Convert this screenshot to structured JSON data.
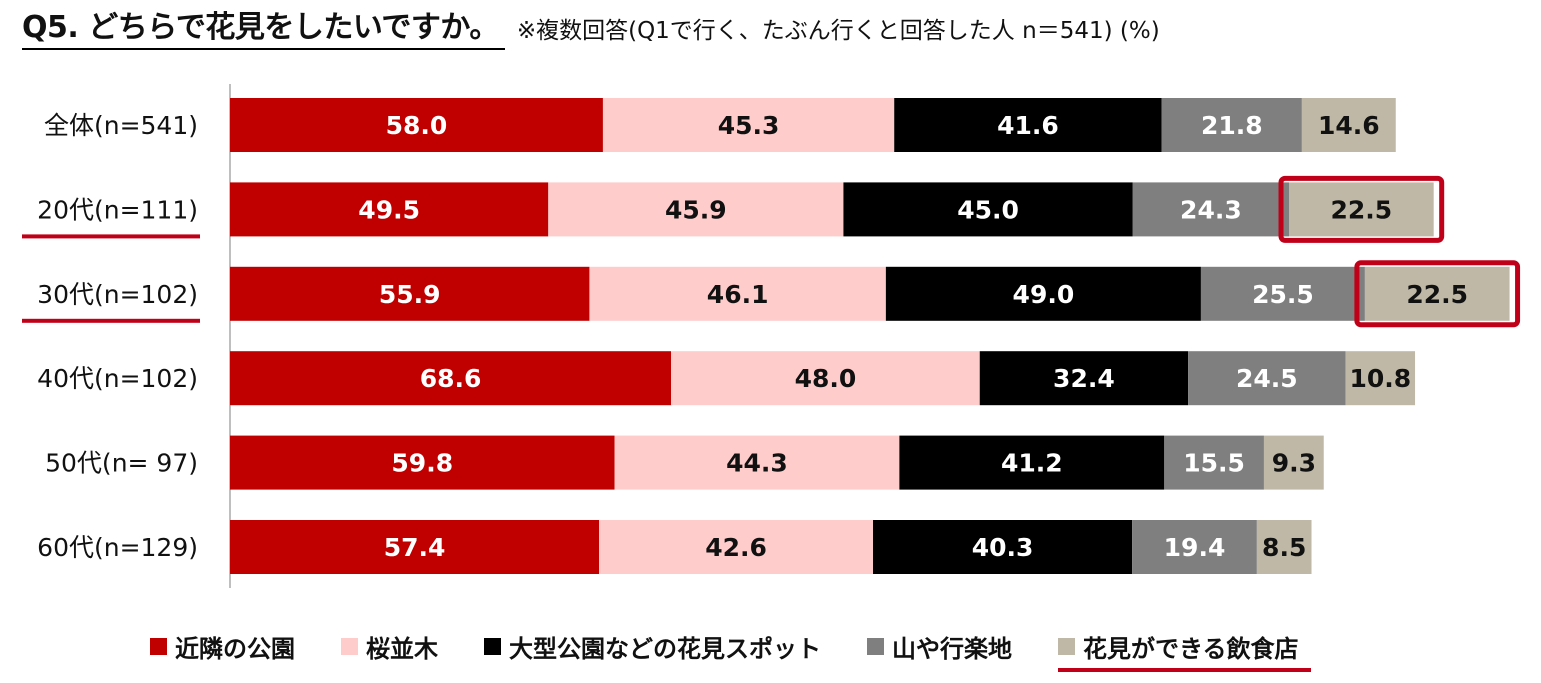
{
  "header": {
    "title": "Q5. どちらで花見をしたいですか。",
    "subtitle": "※複数回答(Q1で行く、たぶん行くと回答した人 n＝541) (%)"
  },
  "chart_data": {
    "type": "bar",
    "orientation": "horizontal",
    "stacked": true,
    "title": "Q5. どちらで花見をしたいですか。",
    "subtitle": "※複数回答(Q1で行く、たぶん行くと回答した人 n＝541) (%)",
    "categories": [
      "全体(n=541)",
      "20代(n=111)",
      "30代(n=102)",
      "40代(n=102)",
      "50代(n=  97)",
      "60代(n=129)"
    ],
    "highlighted_categories": [
      1,
      2
    ],
    "series": [
      {
        "name": "近隣の公園",
        "color": "#c00000",
        "label_color": "#ffffff",
        "values": [
          58.0,
          49.5,
          55.9,
          68.6,
          59.8,
          57.4
        ]
      },
      {
        "name": "桜並木",
        "color": "#ffcccc",
        "label_color": "#111111",
        "values": [
          45.3,
          45.9,
          46.1,
          48.0,
          44.3,
          42.6
        ]
      },
      {
        "name": "大型公園などの花見スポット",
        "color": "#000000",
        "label_color": "#ffffff",
        "values": [
          41.6,
          45.0,
          49.0,
          32.4,
          41.2,
          40.3
        ]
      },
      {
        "name": "山や行楽地",
        "color": "#7f7f7f",
        "label_color": "#ffffff",
        "values": [
          21.8,
          24.3,
          25.5,
          24.5,
          15.5,
          19.4
        ]
      },
      {
        "name": "花見ができる飲食店",
        "color": "#bfb8a6",
        "label_color": "#111111",
        "values": [
          14.6,
          22.5,
          22.5,
          10.8,
          9.3,
          8.5
        ],
        "emphasized": true,
        "highlighted_cells": [
          1,
          2
        ]
      }
    ],
    "xlim": [
      0,
      200
    ],
    "grid": false,
    "legend_position": "bottom",
    "accent_color": "#c00018"
  }
}
